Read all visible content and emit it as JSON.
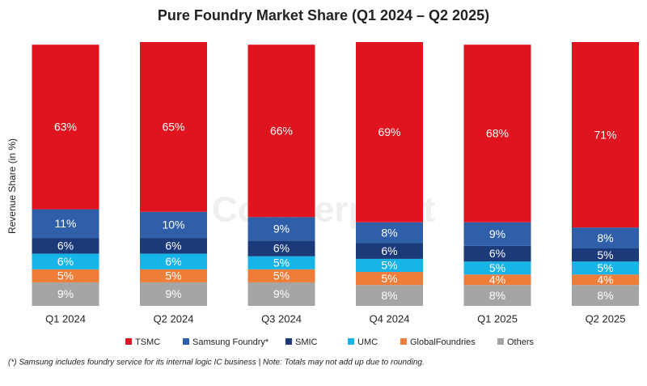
{
  "chart_data": {
    "type": "stacked_bar",
    "title": "Pure Foundry Market Share (Q1 2024 – Q2 2025)",
    "y_label": "Revenue Share (in %)",
    "watermark": "Counterpoint",
    "footnote": "(*) Samsung includes foundry service for its internal logic IC business | Note: Totals may not add up due to rounding.",
    "categories": [
      "Q1 2024",
      "Q2 2024",
      "Q3 2024",
      "Q4 2024",
      "Q1 2025",
      "Q2 2025"
    ],
    "ylim": [
      0,
      101
    ],
    "series": [
      {
        "name": "TSMC",
        "color": "#e0141e",
        "values": [
          63,
          65,
          66,
          69,
          68,
          71
        ],
        "value_labels": [
          "63%",
          "65%",
          "66%",
          "69%",
          "68%",
          "71%"
        ]
      },
      {
        "name": "Samsung Foundry*",
        "color": "#2e5fa8",
        "values": [
          11,
          10,
          9,
          8,
          9,
          8
        ],
        "value_labels": [
          "11%",
          "10%",
          "9%",
          "8%",
          "9%",
          "8%"
        ]
      },
      {
        "name": "SMIC",
        "color": "#1b3a7a",
        "values": [
          6,
          6,
          6,
          6,
          6,
          5
        ],
        "value_labels": [
          "6%",
          "6%",
          "6%",
          "6%",
          "6%",
          "5%"
        ]
      },
      {
        "name": "UMC",
        "color": "#17b4e8",
        "values": [
          6,
          6,
          5,
          5,
          5,
          5
        ],
        "value_labels": [
          "6%",
          "6%",
          "5%",
          "5%",
          "5%",
          "5%"
        ]
      },
      {
        "name": "GlobalFoundries",
        "color": "#ef7d3a",
        "values": [
          5,
          5,
          5,
          5,
          4,
          4
        ],
        "value_labels": [
          "5%",
          "5%",
          "5%",
          "5%",
          "4%",
          "4%"
        ]
      },
      {
        "name": "Others",
        "color": "#a5a5a5",
        "values": [
          9,
          9,
          9,
          8,
          8,
          8
        ],
        "value_labels": [
          "9%",
          "9%",
          "9%",
          "8%",
          "8%",
          "8%"
        ]
      }
    ]
  }
}
